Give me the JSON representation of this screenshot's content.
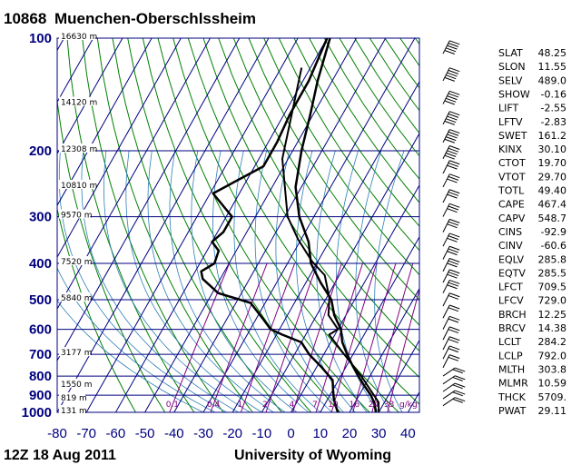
{
  "header": {
    "station_id": "10868",
    "station_name": "Muenchen-Oberschlssheim"
  },
  "footer": {
    "time": "12Z 18 Aug 2011",
    "source": "University of Wyoming"
  },
  "chart_data": {
    "type": "line",
    "title": "",
    "ylabel": "",
    "xlabel": "",
    "x_ticks": [
      "-80",
      "-70",
      "-60",
      "-50",
      "-40",
      "-30",
      "-20",
      "-10",
      "0",
      "10",
      "20",
      "30",
      "40"
    ],
    "xlim": [
      -80,
      40
    ],
    "y_ticks": [
      "100",
      "200",
      "300",
      "400",
      "500",
      "600",
      "700",
      "800",
      "900",
      "1000"
    ],
    "ylim": [
      1000,
      100
    ],
    "height_labels": [
      "16630 m",
      "14120 m",
      "12308 m",
      "10810 m",
      "9570 m",
      "7520 m",
      "5840 m",
      "3177 m",
      "1550 m",
      "819 m",
      "131 m"
    ],
    "mixing_ratio_labels": [
      "0.1",
      "0.4",
      "1",
      "2",
      "4",
      "7",
      "10",
      "16",
      "24",
      "33",
      "g/kg"
    ],
    "series": [
      {
        "values": [
          [
            100,
            -59
          ],
          [
            130,
            -55
          ],
          [
            160,
            -51
          ],
          [
            200,
            -47
          ],
          [
            250,
            -42
          ],
          [
            300,
            -35
          ],
          [
            350,
            -27
          ],
          [
            400,
            -22
          ],
          [
            450,
            -15
          ],
          [
            500,
            -8
          ],
          [
            550,
            -4
          ],
          [
            600,
            1
          ],
          [
            650,
            4
          ],
          [
            700,
            8
          ],
          [
            750,
            12
          ],
          [
            800,
            16
          ],
          [
            850,
            20
          ],
          [
            900,
            24
          ],
          [
            950,
            27
          ],
          [
            1000,
            29
          ]
        ]
      },
      {
        "values": [
          [
            100,
            -60
          ],
          [
            130,
            -58
          ],
          [
            160,
            -58
          ],
          [
            190,
            -57
          ],
          [
            220,
            -57
          ],
          [
            260,
            -69
          ],
          [
            300,
            -58
          ],
          [
            330,
            -58
          ],
          [
            350,
            -60
          ],
          [
            370,
            -56
          ],
          [
            400,
            -55
          ],
          [
            420,
            -58
          ],
          [
            440,
            -56
          ],
          [
            480,
            -48
          ],
          [
            510,
            -35
          ],
          [
            560,
            -28
          ],
          [
            600,
            -23
          ],
          [
            620,
            -18
          ],
          [
            650,
            -10
          ],
          [
            700,
            -5
          ],
          [
            760,
            2
          ],
          [
            820,
            8
          ],
          [
            870,
            10
          ],
          [
            920,
            12
          ],
          [
            960,
            14
          ],
          [
            1000,
            16
          ]
        ]
      },
      {
        "values": [
          [
            120,
            -63
          ],
          [
            210,
            -52
          ],
          [
            300,
            -39
          ],
          [
            345,
            -31
          ],
          [
            395,
            -22
          ],
          [
            430,
            -15
          ],
          [
            495,
            -9
          ],
          [
            550,
            -6
          ],
          [
            600,
            0
          ],
          [
            620,
            -2
          ],
          [
            700,
            7
          ],
          [
            800,
            17
          ],
          [
            900,
            25
          ],
          [
            940,
            28
          ],
          [
            1000,
            30
          ]
        ]
      }
    ],
    "wind_barbs": true,
    "indices": [
      {
        "name": "SLAT",
        "value": "48.25"
      },
      {
        "name": "SLON",
        "value": "11.55"
      },
      {
        "name": "SELV",
        "value": "489.0"
      },
      {
        "name": "SHOW",
        "value": "-0.16"
      },
      {
        "name": "LIFT",
        "value": "-2.55"
      },
      {
        "name": "LFTV",
        "value": "-2.83"
      },
      {
        "name": "SWET",
        "value": "161.2"
      },
      {
        "name": "KINX",
        "value": "30.10"
      },
      {
        "name": "CTOT",
        "value": "19.70"
      },
      {
        "name": "VTOT",
        "value": "29.70"
      },
      {
        "name": "TOTL",
        "value": "49.40"
      },
      {
        "name": "CAPE",
        "value": "467.4"
      },
      {
        "name": "CAPV",
        "value": "548.7"
      },
      {
        "name": "CINS",
        "value": "-92.9"
      },
      {
        "name": "CINV",
        "value": "-60.6"
      },
      {
        "name": "EQLV",
        "value": "285.8"
      },
      {
        "name": "EQTV",
        "value": "285.5"
      },
      {
        "name": "LFCT",
        "value": "709.5"
      },
      {
        "name": "LFCV",
        "value": "729.0"
      },
      {
        "name": "BRCH",
        "value": "12.25"
      },
      {
        "name": "BRCV",
        "value": "14.38"
      },
      {
        "name": "LCLT",
        "value": "284.2"
      },
      {
        "name": "LCLP",
        "value": "792.0"
      },
      {
        "name": "MLTH",
        "value": "303.8"
      },
      {
        "name": "MLMR",
        "value": "10.59"
      },
      {
        "name": "THCK",
        "value": "5709."
      },
      {
        "name": "PWAT",
        "value": "29.11"
      }
    ]
  }
}
